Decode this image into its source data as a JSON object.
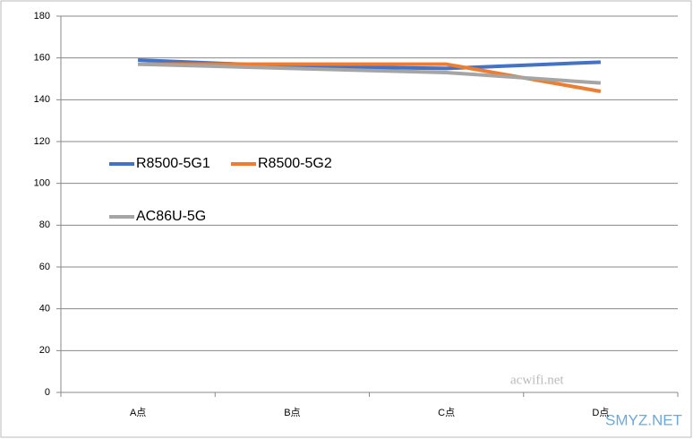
{
  "chart_data": {
    "type": "line",
    "categories": [
      "A点",
      "B点",
      "C点",
      "D点"
    ],
    "series": [
      {
        "name": "R8500-5G1",
        "color": "#4472c4",
        "values": [
          159,
          156,
          155,
          158
        ]
      },
      {
        "name": "R8500-5G2",
        "color": "#ed7d31",
        "values": [
          157,
          157,
          157,
          144
        ]
      },
      {
        "name": "AC86U-5G",
        "color": "#a5a5a5",
        "values": [
          157,
          155,
          153,
          148
        ]
      }
    ],
    "ylim": [
      0,
      180
    ],
    "yticks": [
      0,
      20,
      40,
      60,
      80,
      100,
      120,
      140,
      160,
      180
    ],
    "grid": true,
    "annotations": [
      "acwifi.net",
      "SMYZ.NET"
    ]
  }
}
